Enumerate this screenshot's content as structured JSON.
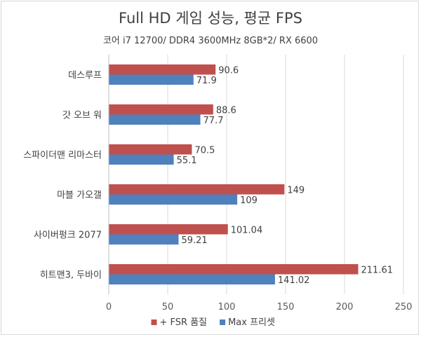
{
  "chart_data": {
    "type": "bar",
    "orientation": "horizontal",
    "title": "Full HD 게임 성능, 평균 FPS",
    "subtitle": "코어 i7 12700/ DDR4 3600MHz 8GB*2/ RX 6600",
    "categories": [
      "데스루프",
      "갓 오브 워",
      "스파이더맨 리마스터",
      "마블 가오갤",
      "사이버펑크 2077",
      "히트맨3, 두바이"
    ],
    "series": [
      {
        "name": "+ FSR 품질",
        "color": "#c0504d",
        "values": [
          90.6,
          88.6,
          70.5,
          149,
          101.04,
          211.61
        ]
      },
      {
        "name": "Max 프리셋",
        "color": "#4f81bd",
        "values": [
          71.9,
          77.7,
          55.1,
          109,
          59.21,
          141.02
        ]
      }
    ],
    "value_labels": [
      [
        "90.6",
        "88.6",
        "70.5",
        "149",
        "101.04",
        "211.61"
      ],
      [
        "71.9",
        "77.7",
        "55.1",
        "109",
        "59.21",
        "141.02"
      ]
    ],
    "xlim": [
      0,
      250
    ],
    "xticks": [
      "0",
      "50",
      "100",
      "150",
      "200",
      "250"
    ],
    "grid": true,
    "legend_position": "bottom"
  }
}
